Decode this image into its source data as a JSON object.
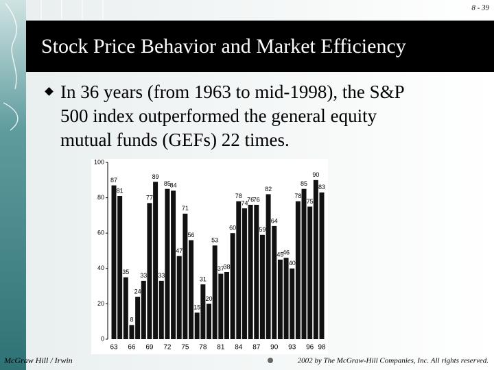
{
  "page_number": "8 - 39",
  "title": "Stock Price Behavior and Market Efficiency",
  "bullet": {
    "lines": [
      "In 36 years (from 1963 to mid-1998), the S&P",
      "500 index outperformed the general equity",
      "mutual funds (GEFs) 22 times."
    ]
  },
  "footer": {
    "left": "McGraw Hill / Irwin",
    "right": "2002 by The McGraw-Hill Companies, Inc. All rights reserved."
  },
  "chart_data": {
    "type": "bar",
    "categories": [
      "63",
      null,
      null,
      "66",
      null,
      null,
      "69",
      null,
      null,
      "72",
      null,
      null,
      "75",
      null,
      null,
      "78",
      null,
      null,
      "81",
      null,
      null,
      "84",
      null,
      null,
      "87",
      null,
      null,
      "90",
      null,
      null,
      "93",
      null,
      null,
      "96",
      null,
      "98"
    ],
    "values": [
      87,
      81,
      35,
      8,
      24,
      33,
      77,
      89,
      33,
      85,
      84,
      47,
      71,
      56,
      15,
      31,
      20,
      53,
      37,
      38,
      60,
      78,
      74,
      76,
      76,
      59,
      82,
      64,
      45,
      46,
      40,
      78,
      85,
      75,
      90,
      83
    ],
    "color": "#111111",
    "ylim": [
      0,
      100
    ],
    "yticks": [
      0,
      20,
      40,
      60,
      80,
      100
    ],
    "grid": false
  }
}
